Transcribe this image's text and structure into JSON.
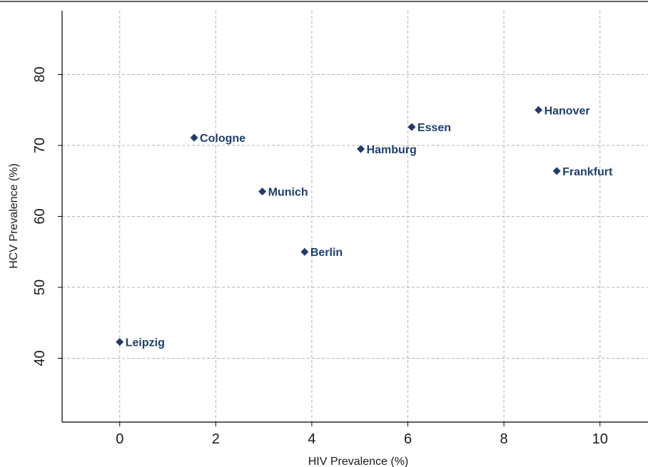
{
  "chart_data": {
    "type": "scatter",
    "title": "",
    "xlabel": "HIV Prevalence (%)",
    "ylabel": "HCV Prevalence (%)",
    "xlim": [
      -1.2,
      11
    ],
    "ylim": [
      31,
      89
    ],
    "xticks": [
      "0",
      "2",
      "4",
      "6",
      "8",
      "10"
    ],
    "yticks": [
      "40",
      "50",
      "60",
      "70",
      "80"
    ],
    "grid": true,
    "marker_color": "#223a6b",
    "label_color": "#1d3f6e",
    "points": [
      {
        "label": "Leipzig",
        "x": 0.0,
        "y": 42.3
      },
      {
        "label": "Cologne",
        "x": 1.55,
        "y": 71.1
      },
      {
        "label": "Munich",
        "x": 2.97,
        "y": 63.5
      },
      {
        "label": "Berlin",
        "x": 3.85,
        "y": 55.0
      },
      {
        "label": "Hamburg",
        "x": 5.02,
        "y": 69.5
      },
      {
        "label": "Essen",
        "x": 6.08,
        "y": 72.6
      },
      {
        "label": "Hanover",
        "x": 8.72,
        "y": 75.0
      },
      {
        "label": "Frankfurt",
        "x": 9.1,
        "y": 66.4
      }
    ]
  }
}
